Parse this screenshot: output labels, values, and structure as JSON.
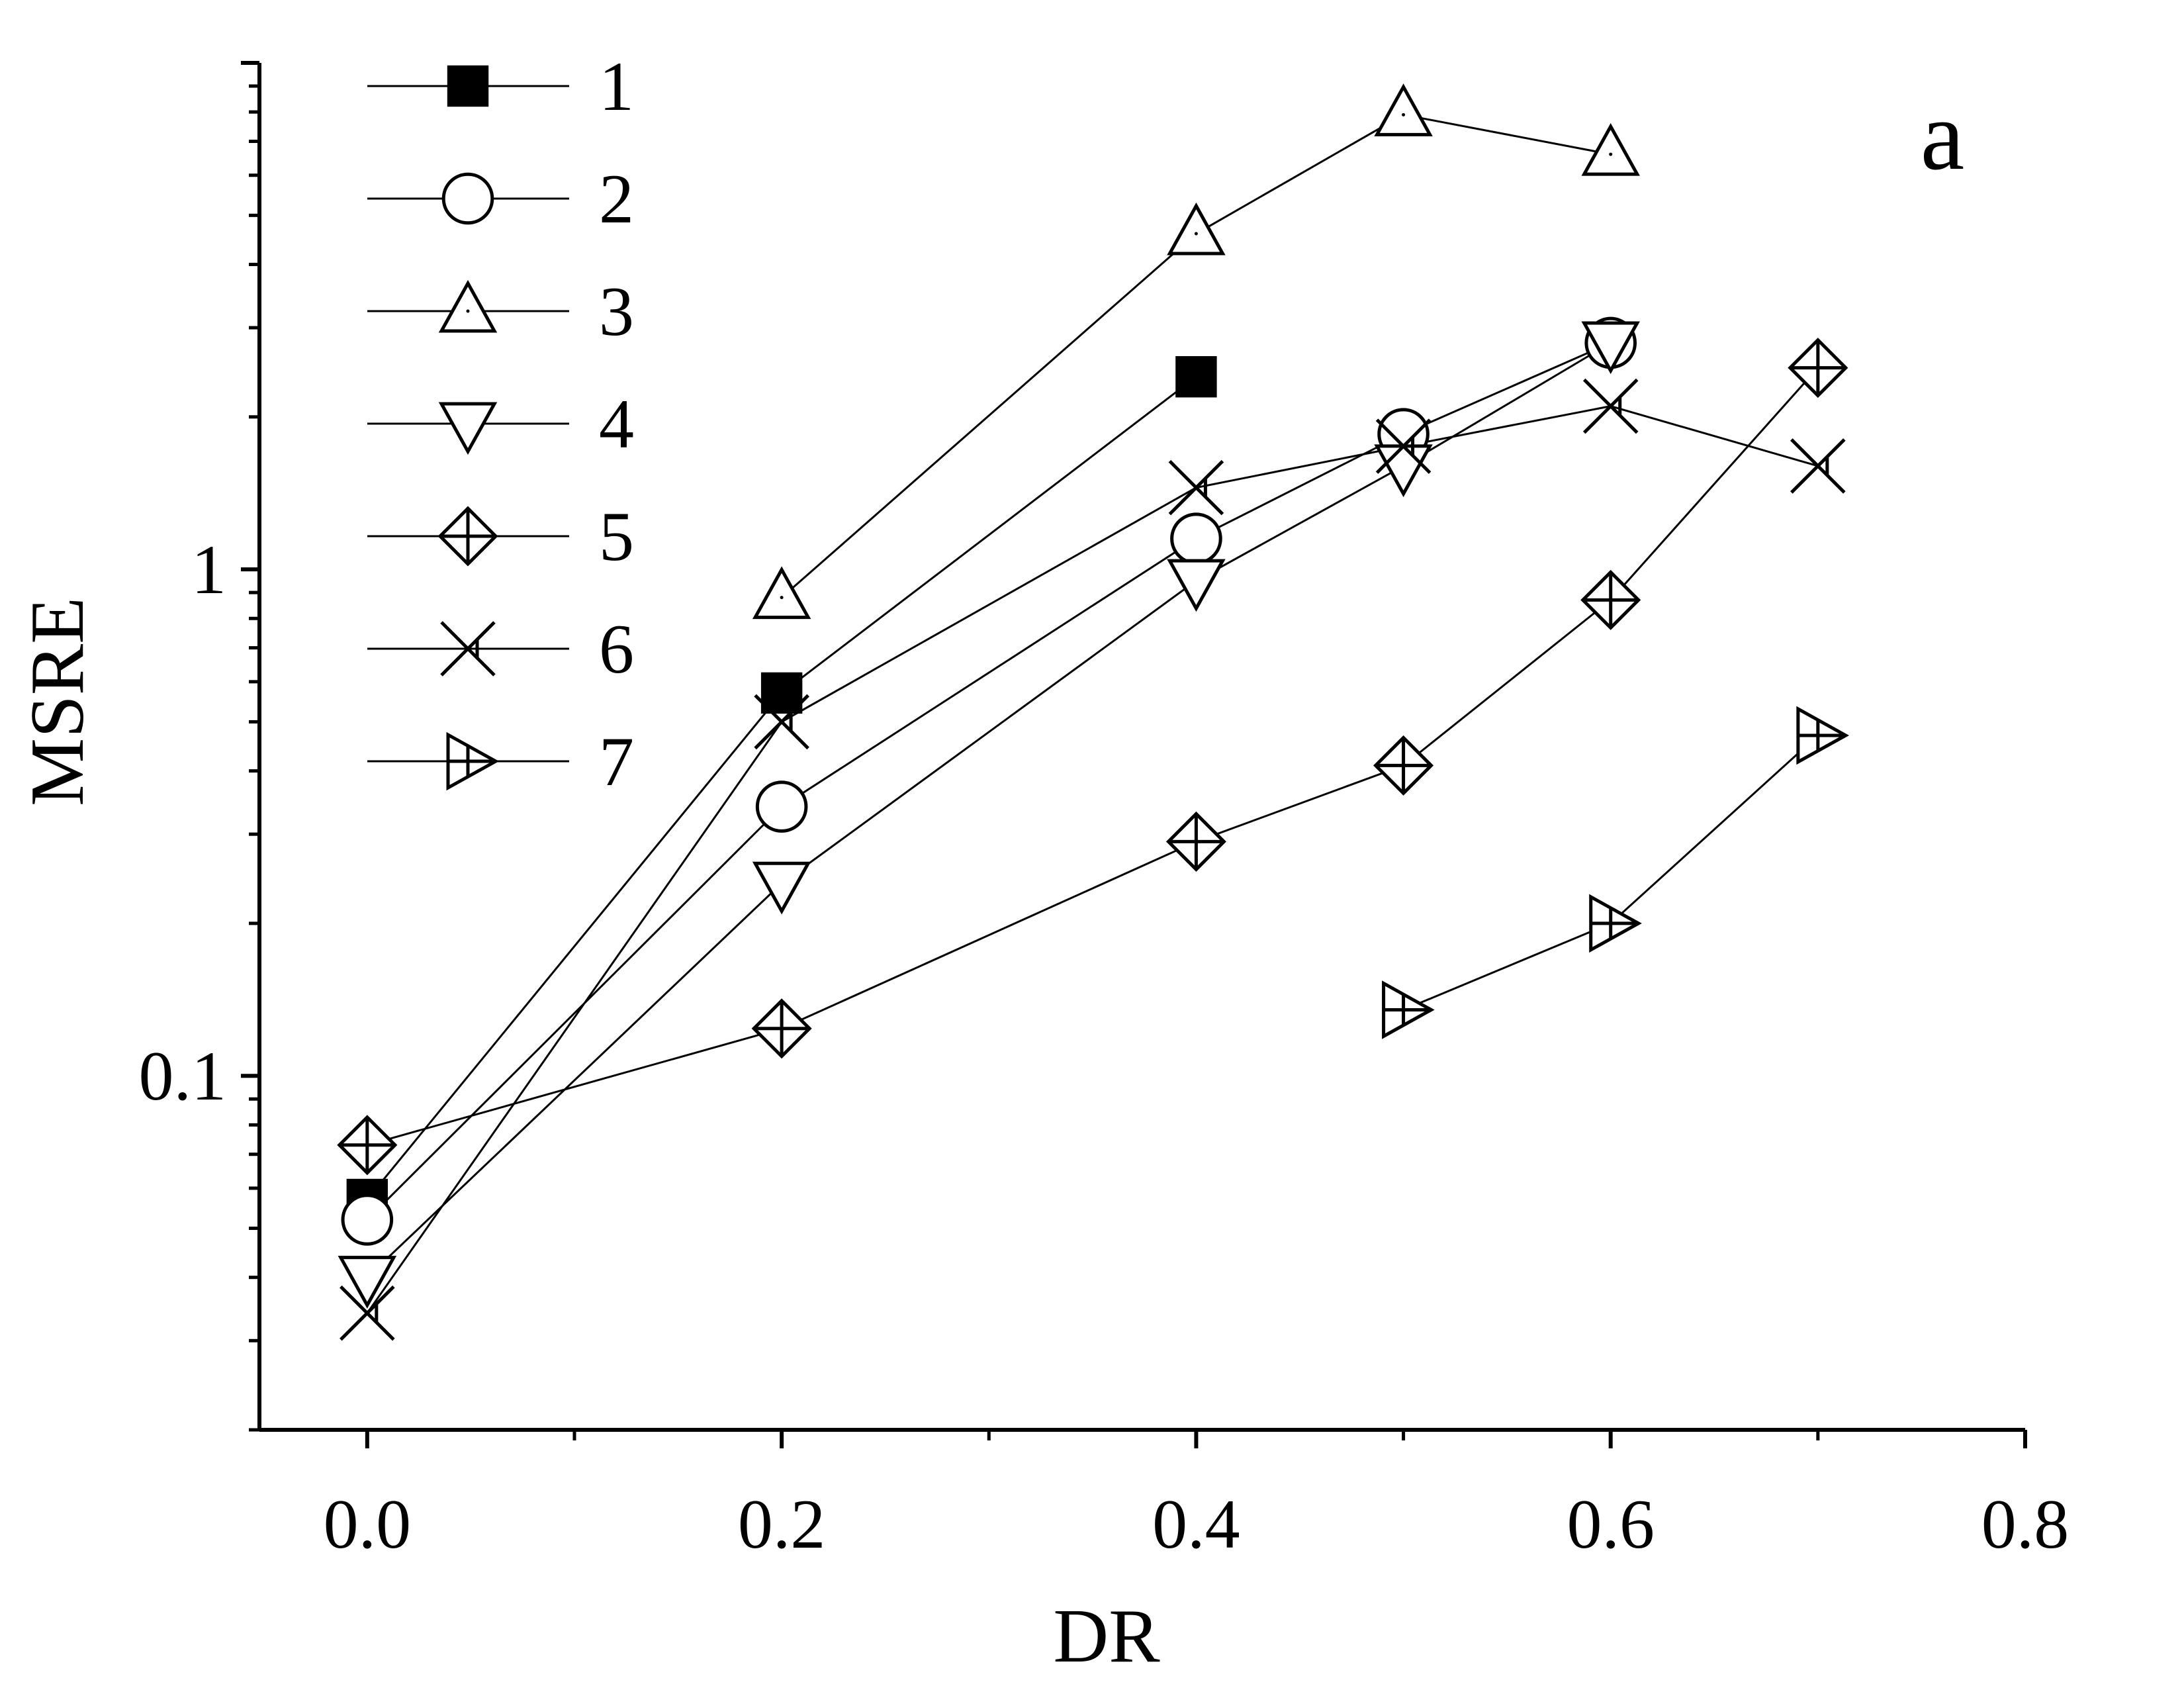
{
  "chart_data": {
    "type": "line",
    "title": "",
    "panel_label": "a",
    "xlabel": "DR",
    "ylabel": "MSRE",
    "xlim": [
      -0.052,
      0.8
    ],
    "ylim": [
      0.02,
      10
    ],
    "yscale": "log",
    "x_ticks": [
      "0.0",
      "0.2",
      "0.4",
      "0.6",
      "0.8"
    ],
    "x_tick_values": [
      0.0,
      0.2,
      0.4,
      0.6,
      0.8
    ],
    "y_ticks": [
      "0.1",
      "1"
    ],
    "y_tick_values": [
      0.1,
      1
    ],
    "grid": false,
    "legend_position": "top-left",
    "series": [
      {
        "name": "1",
        "marker": "filled-square",
        "points": [
          [
            0.0,
            0.057
          ],
          [
            0.2,
            0.57
          ],
          [
            0.4,
            2.4
          ]
        ]
      },
      {
        "name": "2",
        "marker": "circle",
        "points": [
          [
            0.0,
            0.052
          ],
          [
            0.2,
            0.34
          ],
          [
            0.4,
            1.15
          ],
          [
            0.5,
            1.85
          ],
          [
            0.6,
            2.8
          ]
        ]
      },
      {
        "name": "3",
        "marker": "triangle-up",
        "points": [
          [
            0.2,
            0.88
          ],
          [
            0.4,
            4.6
          ],
          [
            0.5,
            7.9
          ],
          [
            0.6,
            6.6
          ]
        ]
      },
      {
        "name": "4",
        "marker": "triangle-down",
        "points": [
          [
            0.0,
            0.04
          ],
          [
            0.2,
            0.24
          ],
          [
            0.4,
            0.95
          ],
          [
            0.5,
            1.6
          ],
          [
            0.6,
            2.8
          ]
        ]
      },
      {
        "name": "5",
        "marker": "diamond-plus",
        "points": [
          [
            0.0,
            0.073
          ],
          [
            0.2,
            0.124
          ],
          [
            0.4,
            0.29
          ],
          [
            0.5,
            0.41
          ],
          [
            0.6,
            0.87
          ],
          [
            0.7,
            2.5
          ]
        ]
      },
      {
        "name": "6",
        "marker": "x-triangle",
        "points": [
          [
            0.0,
            0.034
          ],
          [
            0.2,
            0.5
          ],
          [
            0.4,
            1.45
          ],
          [
            0.5,
            1.75
          ],
          [
            0.6,
            2.1
          ],
          [
            0.7,
            1.6
          ]
        ]
      },
      {
        "name": "7",
        "marker": "triangle-right",
        "points": [
          [
            0.5,
            0.135
          ],
          [
            0.6,
            0.2
          ],
          [
            0.7,
            0.47
          ]
        ]
      }
    ]
  }
}
